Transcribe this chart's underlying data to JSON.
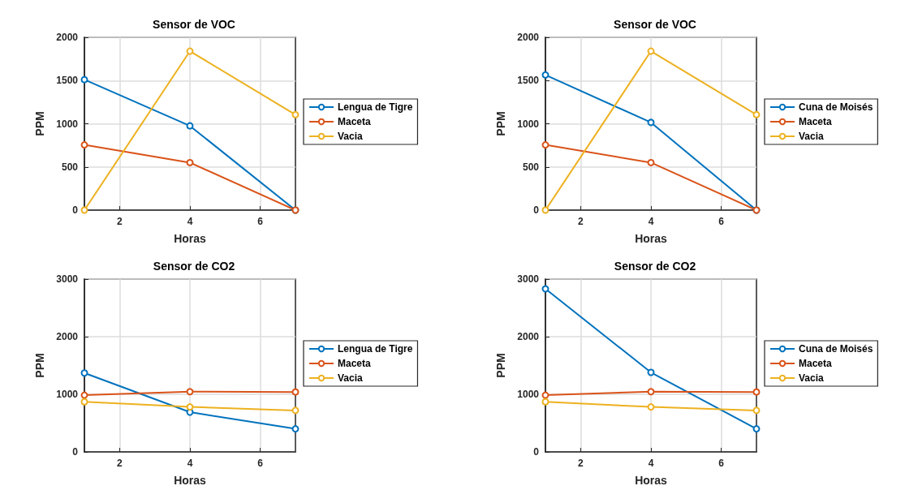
{
  "chart_data": [
    {
      "type": "line",
      "title": "Sensor de VOC",
      "xlabel": "Horas",
      "ylabel": "PPM",
      "x": [
        1,
        4,
        7
      ],
      "xlim": [
        1,
        7
      ],
      "xticks": [
        2,
        4,
        6
      ],
      "ylim": [
        0,
        2000
      ],
      "yticks": [
        0,
        500,
        1000,
        1500,
        2000
      ],
      "grid": true,
      "marker": "circle",
      "legend": "right",
      "series": [
        {
          "name": "Lengua de Tigre",
          "color": "#0072bd",
          "values": [
            1510,
            975,
            0
          ]
        },
        {
          "name": "Maceta",
          "color": "#d95319",
          "values": [
            755,
            550,
            0
          ]
        },
        {
          "name": "Vacia",
          "color": "#edb120",
          "values": [
            0,
            1840,
            1105
          ]
        }
      ]
    },
    {
      "type": "line",
      "title": "Sensor de VOC",
      "xlabel": "Horas",
      "ylabel": "PPM",
      "x": [
        1,
        4,
        7
      ],
      "xlim": [
        1,
        7
      ],
      "xticks": [
        2,
        4,
        6
      ],
      "ylim": [
        0,
        2000
      ],
      "yticks": [
        0,
        500,
        1000,
        1500,
        2000
      ],
      "grid": true,
      "marker": "circle",
      "legend": "right",
      "series": [
        {
          "name": "Cuna de Moisés",
          "color": "#0072bd",
          "values": [
            1565,
            1015,
            0
          ]
        },
        {
          "name": "Maceta",
          "color": "#d95319",
          "values": [
            755,
            550,
            0
          ]
        },
        {
          "name": "Vacia",
          "color": "#edb120",
          "values": [
            0,
            1840,
            1105
          ]
        }
      ]
    },
    {
      "type": "line",
      "title": "Sensor de CO2",
      "xlabel": "Horas",
      "ylabel": "PPM",
      "x": [
        1,
        4,
        7
      ],
      "xlim": [
        1,
        7
      ],
      "xticks": [
        2,
        4,
        6
      ],
      "ylim": [
        0,
        3000
      ],
      "yticks": [
        0,
        1000,
        2000,
        3000
      ],
      "grid": true,
      "marker": "circle",
      "legend": "right",
      "series": [
        {
          "name": "Lengua de Tigre",
          "color": "#0072bd",
          "values": [
            1370,
            690,
            400
          ]
        },
        {
          "name": "Maceta",
          "color": "#d95319",
          "values": [
            985,
            1045,
            1040
          ]
        },
        {
          "name": "Vacia",
          "color": "#edb120",
          "values": [
            870,
            780,
            720
          ]
        }
      ]
    },
    {
      "type": "line",
      "title": "Sensor de CO2",
      "xlabel": "Horas",
      "ylabel": "PPM",
      "x": [
        1,
        4,
        7
      ],
      "xlim": [
        1,
        7
      ],
      "xticks": [
        2,
        4,
        6
      ],
      "ylim": [
        0,
        3000
      ],
      "yticks": [
        0,
        1000,
        2000,
        3000
      ],
      "grid": true,
      "marker": "circle",
      "legend": "right",
      "series": [
        {
          "name": "Cuna de Moisés",
          "color": "#0072bd",
          "values": [
            2830,
            1380,
            400
          ]
        },
        {
          "name": "Maceta",
          "color": "#d95319",
          "values": [
            985,
            1045,
            1040
          ]
        },
        {
          "name": "Vacia",
          "color": "#edb120",
          "values": [
            870,
            780,
            720
          ]
        }
      ]
    }
  ]
}
